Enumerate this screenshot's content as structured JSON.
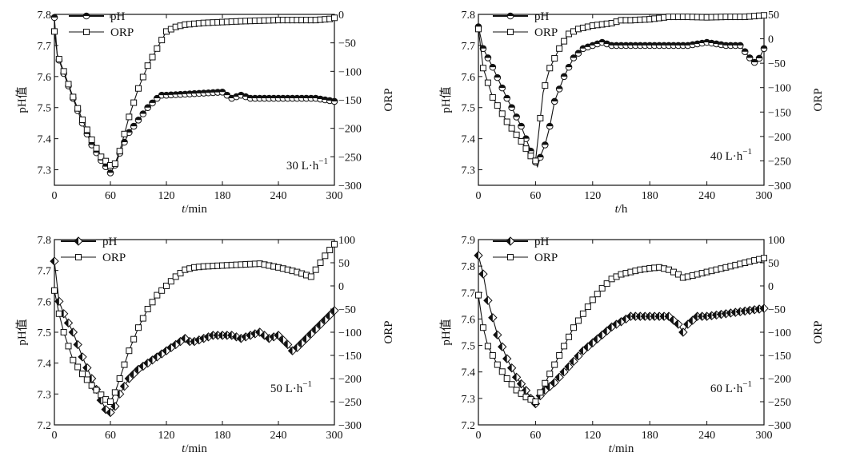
{
  "chart_data": [
    {
      "type": "line",
      "annotation": "30 L·h",
      "annotation_sup": "−1",
      "xlabel_italic": "t",
      "xlabel_rest": "/min",
      "ylabel_left": "pH值",
      "ylabel_right": "ORP",
      "xlim": [
        0,
        300
      ],
      "ylim_left": [
        7.25,
        7.8
      ],
      "ylim_right": [
        -300,
        0
      ],
      "xticks": [
        "0",
        "60",
        "120",
        "180",
        "240",
        "300"
      ],
      "yticks_left": [
        "7.3",
        "7.4",
        "7.5",
        "7.6",
        "7.7",
        "7.8"
      ],
      "yticks_right": [
        "0",
        "−50",
        "−100",
        "−150",
        "−200",
        "−250",
        "−300"
      ],
      "legend": [
        "pH",
        "ORP"
      ],
      "ph_marker": "half-circle",
      "series": [
        {
          "name": "pH",
          "axis": "left",
          "x": [
            0,
            3,
            10,
            20,
            30,
            40,
            50,
            60,
            66,
            72,
            80,
            90,
            100,
            110,
            115,
            120,
            180,
            190,
            200,
            210,
            240,
            260,
            280,
            300
          ],
          "y": [
            7.79,
            7.67,
            7.61,
            7.53,
            7.45,
            7.38,
            7.33,
            7.29,
            7.32,
            7.37,
            7.42,
            7.46,
            7.5,
            7.53,
            7.54,
            7.54,
            7.55,
            7.53,
            7.54,
            7.53,
            7.53,
            7.53,
            7.53,
            7.52
          ]
        },
        {
          "name": "ORP",
          "axis": "right",
          "x": [
            0,
            3,
            10,
            20,
            30,
            40,
            50,
            60,
            65,
            70,
            80,
            90,
            100,
            110,
            120,
            130,
            140,
            160,
            200,
            240,
            280,
            295,
            300
          ],
          "y": [
            -30,
            -70,
            -100,
            -145,
            -185,
            -220,
            -250,
            -265,
            -262,
            -240,
            -180,
            -130,
            -90,
            -60,
            -30,
            -22,
            -18,
            -15,
            -12,
            -10,
            -10,
            -8,
            -6
          ]
        }
      ]
    },
    {
      "type": "line",
      "annotation": "40 L·h",
      "annotation_sup": "−1",
      "xlabel_italic": "t",
      "xlabel_rest": "/h",
      "ylabel_left": "pH值",
      "ylabel_right": "ORP",
      "xlim": [
        0,
        300
      ],
      "ylim_left": [
        7.25,
        7.8
      ],
      "ylim_right": [
        -300,
        50
      ],
      "xticks": [
        "0",
        "60",
        "120",
        "180",
        "240",
        "300"
      ],
      "yticks_left": [
        "7.3",
        "7.4",
        "7.5",
        "7.6",
        "7.7",
        "7.8"
      ],
      "yticks_right": [
        "50",
        "0",
        "−50",
        "−100",
        "−150",
        "−200",
        "−250",
        "−300"
      ],
      "legend": [
        "pH",
        "ORP"
      ],
      "ph_marker": "half-circle",
      "series": [
        {
          "name": "pH",
          "axis": "left",
          "x": [
            0,
            5,
            15,
            30,
            45,
            55,
            62,
            66,
            70,
            75,
            80,
            90,
            100,
            110,
            120,
            130,
            140,
            160,
            180,
            200,
            220,
            240,
            260,
            275,
            285,
            292,
            300
          ],
          "y": [
            7.76,
            7.69,
            7.63,
            7.53,
            7.44,
            7.36,
            7.31,
            7.35,
            7.38,
            7.44,
            7.52,
            7.6,
            7.66,
            7.69,
            7.7,
            7.71,
            7.7,
            7.7,
            7.7,
            7.7,
            7.7,
            7.71,
            7.7,
            7.7,
            7.66,
            7.64,
            7.69
          ]
        },
        {
          "name": "ORP",
          "axis": "right",
          "x": [
            0,
            5,
            15,
            30,
            45,
            55,
            60,
            64,
            68,
            75,
            85,
            95,
            105,
            120,
            140,
            150,
            160,
            180,
            200,
            220,
            240,
            260,
            280,
            300
          ],
          "y": [
            20,
            -60,
            -120,
            -170,
            -210,
            -240,
            -250,
            -180,
            -110,
            -60,
            -20,
            10,
            20,
            27,
            32,
            38,
            38,
            40,
            45,
            45,
            44,
            45,
            45,
            48
          ]
        }
      ]
    },
    {
      "type": "line",
      "annotation": "50 L·h",
      "annotation_sup": "−1",
      "xlabel_italic": "t",
      "xlabel_rest": "/min",
      "ylabel_left": "pH值",
      "ylabel_right": "ORP",
      "xlim": [
        0,
        300
      ],
      "ylim_left": [
        7.2,
        7.8
      ],
      "ylim_right": [
        -300,
        100
      ],
      "xticks": [
        "0",
        "60",
        "120",
        "180",
        "240",
        "300"
      ],
      "yticks_left": [
        "7.2",
        "7.3",
        "7.4",
        "7.5",
        "7.6",
        "7.7",
        "7.8"
      ],
      "yticks_right": [
        "100",
        "50",
        "0",
        "−50",
        "−100",
        "−150",
        "−200",
        "−250",
        "−300"
      ],
      "legend": [
        "pH",
        "ORP"
      ],
      "ph_marker": "diamond",
      "series": [
        {
          "name": "pH",
          "axis": "left",
          "x": [
            0,
            5,
            10,
            20,
            30,
            40,
            50,
            55,
            60,
            65,
            70,
            80,
            90,
            100,
            110,
            120,
            130,
            140,
            145,
            150,
            160,
            170,
            180,
            190,
            200,
            210,
            220,
            230,
            240,
            250,
            255,
            260,
            270,
            280,
            290,
            300
          ],
          "y": [
            7.73,
            7.6,
            7.56,
            7.5,
            7.42,
            7.35,
            7.28,
            7.25,
            7.24,
            7.26,
            7.3,
            7.35,
            7.38,
            7.4,
            7.42,
            7.44,
            7.46,
            7.48,
            7.47,
            7.47,
            7.48,
            7.49,
            7.49,
            7.49,
            7.48,
            7.49,
            7.5,
            7.48,
            7.49,
            7.46,
            7.44,
            7.45,
            7.48,
            7.51,
            7.54,
            7.57
          ]
        },
        {
          "name": "ORP",
          "axis": "right",
          "x": [
            0,
            5,
            10,
            20,
            30,
            40,
            50,
            55,
            60,
            65,
            70,
            80,
            90,
            100,
            110,
            120,
            130,
            140,
            150,
            160,
            180,
            200,
            220,
            240,
            260,
            275,
            280,
            290,
            300
          ],
          "y": [
            -10,
            -60,
            -100,
            -160,
            -190,
            -215,
            -235,
            -245,
            -250,
            -230,
            -200,
            -140,
            -90,
            -50,
            -20,
            0,
            20,
            35,
            40,
            42,
            44,
            46,
            48,
            40,
            30,
            20,
            35,
            65,
            90
          ]
        }
      ]
    },
    {
      "type": "line",
      "annotation": "60 L·h",
      "annotation_sup": "−1",
      "xlabel_italic": "t",
      "xlabel_rest": "/min",
      "ylabel_left": "pH值",
      "ylabel_right": "ORP",
      "xlim": [
        0,
        300
      ],
      "ylim_left": [
        7.2,
        7.9
      ],
      "ylim_right": [
        -300,
        100
      ],
      "xticks": [
        "0",
        "60",
        "120",
        "180",
        "240",
        "300"
      ],
      "yticks_left": [
        "7.2",
        "7.3",
        "7.4",
        "7.5",
        "7.6",
        "7.7",
        "7.8",
        "7.9"
      ],
      "yticks_right": [
        "100",
        "50",
        "0",
        "−50",
        "−100",
        "−150",
        "−200",
        "−250",
        "−300"
      ],
      "legend": [
        "pH",
        "ORP"
      ],
      "ph_marker": "diamond",
      "series": [
        {
          "name": "pH",
          "axis": "left",
          "x": [
            0,
            5,
            10,
            20,
            30,
            40,
            50,
            55,
            60,
            62,
            65,
            70,
            80,
            90,
            100,
            110,
            120,
            130,
            140,
            150,
            160,
            170,
            180,
            190,
            200,
            210,
            215,
            220,
            230,
            240,
            260,
            280,
            300
          ],
          "y": [
            7.84,
            7.77,
            7.67,
            7.54,
            7.45,
            7.38,
            7.33,
            7.3,
            7.28,
            7.29,
            7.31,
            7.33,
            7.36,
            7.4,
            7.44,
            7.48,
            7.51,
            7.54,
            7.57,
            7.59,
            7.61,
            7.61,
            7.61,
            7.61,
            7.61,
            7.58,
            7.55,
            7.58,
            7.61,
            7.61,
            7.62,
            7.63,
            7.64
          ]
        },
        {
          "name": "ORP",
          "axis": "right",
          "x": [
            0,
            5,
            10,
            20,
            30,
            40,
            50,
            55,
            60,
            62,
            65,
            70,
            80,
            90,
            100,
            110,
            120,
            130,
            140,
            150,
            160,
            170,
            180,
            190,
            200,
            210,
            215,
            220,
            240,
            260,
            280,
            300
          ],
          "y": [
            -20,
            -90,
            -130,
            -170,
            -200,
            -225,
            -240,
            -245,
            -250,
            -248,
            -230,
            -210,
            -170,
            -130,
            -90,
            -60,
            -30,
            -5,
            15,
            25,
            30,
            35,
            38,
            40,
            35,
            25,
            18,
            20,
            30,
            40,
            50,
            60
          ]
        }
      ]
    }
  ]
}
